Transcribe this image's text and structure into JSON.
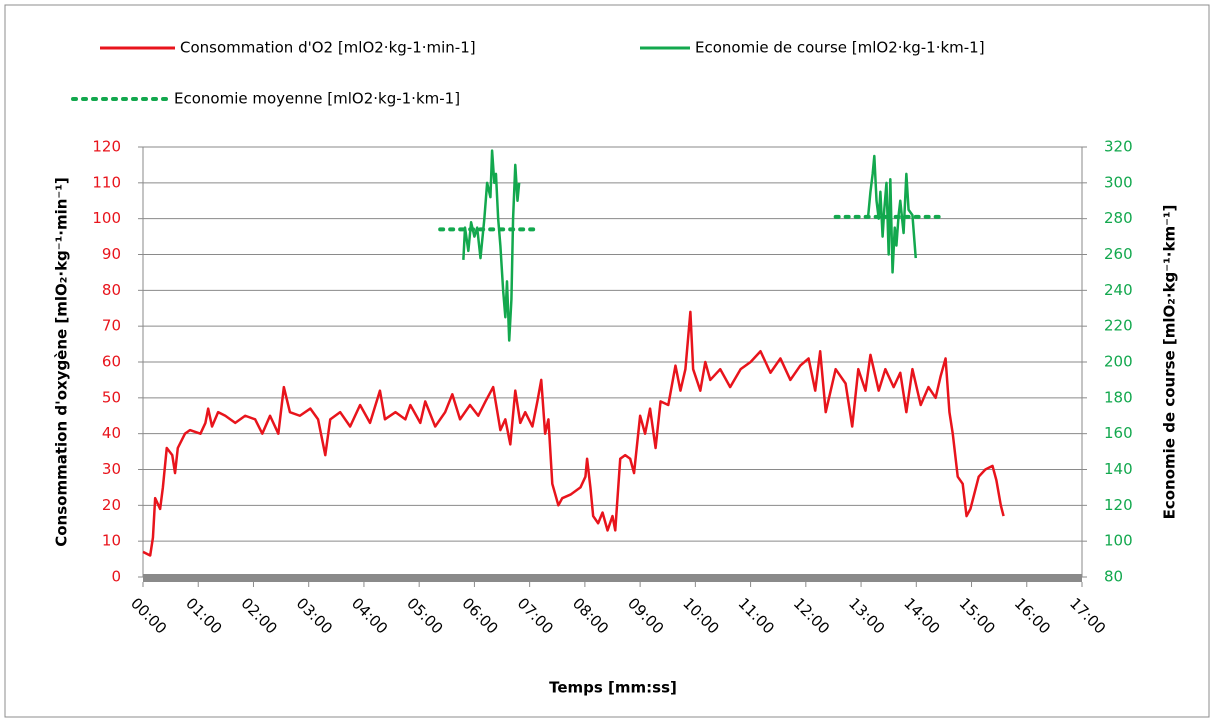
{
  "chart_data": {
    "type": "line",
    "xlabel": "Temps [mm:ss]",
    "ylabel": "Consommation d'oxygène [mlO₂·kg⁻¹·min⁻¹]",
    "y2label": "Economie de course [mlO₂·kg⁻¹·km⁻¹]",
    "legend": "top",
    "grid": true,
    "xlim": [
      0,
      17
    ],
    "xticks": [
      {
        "value": 0,
        "label": "00:00"
      },
      {
        "value": 1,
        "label": "01:00"
      },
      {
        "value": 2,
        "label": "02:00"
      },
      {
        "value": 3,
        "label": "03:00"
      },
      {
        "value": 4,
        "label": "04:00"
      },
      {
        "value": 5,
        "label": "05:00"
      },
      {
        "value": 6,
        "label": "06:00"
      },
      {
        "value": 7,
        "label": "07:00"
      },
      {
        "value": 8,
        "label": "08:00"
      },
      {
        "value": 9,
        "label": "09:00"
      },
      {
        "value": 10,
        "label": "10:00"
      },
      {
        "value": 11,
        "label": "11:00"
      },
      {
        "value": 12,
        "label": "12:00"
      },
      {
        "value": 13,
        "label": "13:00"
      },
      {
        "value": 14,
        "label": "14:00"
      },
      {
        "value": 15,
        "label": "15:00"
      },
      {
        "value": 16,
        "label": "16:00"
      },
      {
        "value": 17,
        "label": "17:00"
      }
    ],
    "ylim": [
      0,
      120
    ],
    "yticks": [
      0,
      10,
      20,
      30,
      40,
      50,
      60,
      70,
      80,
      90,
      100,
      110,
      120
    ],
    "y2lim": [
      80,
      320
    ],
    "y2ticks": [
      80,
      100,
      120,
      140,
      160,
      180,
      200,
      220,
      240,
      260,
      280,
      300,
      320
    ],
    "series": [
      {
        "name": "Consommation d'O2 [mlO2·kg-1·min-1]",
        "color": "#e8141c",
        "style": "solid",
        "x": [
          0,
          0.13,
          0.18,
          0.22,
          0.31,
          0.36,
          0.43,
          0.53,
          0.58,
          0.63,
          0.76,
          0.85,
          1.04,
          1.13,
          1.18,
          1.25,
          1.36,
          1.49,
          1.67,
          1.85,
          2.03,
          2.16,
          2.3,
          2.45,
          2.55,
          2.66,
          2.84,
          3.03,
          3.17,
          3.3,
          3.39,
          3.57,
          3.75,
          3.93,
          4.11,
          4.29,
          4.38,
          4.57,
          4.75,
          4.84,
          5.02,
          5.11,
          5.29,
          5.47,
          5.6,
          5.74,
          5.92,
          6.07,
          6.2,
          6.34,
          6.47,
          6.56,
          6.65,
          6.74,
          6.83,
          6.92,
          7.05,
          7.14,
          7.21,
          7.28,
          7.34,
          7.41,
          7.52,
          7.59,
          7.74,
          7.92,
          8.01,
          8.04,
          8.1,
          8.15,
          8.24,
          8.32,
          8.41,
          8.5,
          8.55,
          8.64,
          8.73,
          8.82,
          8.89,
          9.0,
          9.09,
          9.18,
          9.28,
          9.37,
          9.51,
          9.64,
          9.73,
          9.82,
          9.91,
          9.96,
          10.09,
          10.18,
          10.27,
          10.45,
          10.63,
          10.82,
          11.0,
          11.18,
          11.36,
          11.54,
          11.72,
          11.9,
          12.05,
          12.17,
          12.26,
          12.36,
          12.54,
          12.72,
          12.84,
          12.95,
          13.08,
          13.17,
          13.32,
          13.44,
          13.59,
          13.71,
          13.82,
          13.93,
          14.08,
          14.22,
          14.35,
          14.44,
          14.53,
          14.6,
          14.66,
          14.75,
          14.84,
          14.91,
          14.98,
          15.13,
          15.25,
          15.38,
          15.45,
          15.53,
          15.58
        ],
        "values": [
          7,
          6,
          11,
          22,
          19,
          25,
          36,
          34,
          29,
          36,
          40,
          41,
          40,
          43,
          47,
          42,
          46,
          45,
          43,
          45,
          44,
          40,
          45,
          40,
          53,
          46,
          45,
          47,
          44,
          34,
          44,
          46,
          42,
          48,
          43,
          52,
          44,
          46,
          44,
          48,
          43,
          49,
          42,
          46,
          51,
          44,
          48,
          45,
          49,
          53,
          41,
          44,
          37,
          52,
          43,
          46,
          42,
          49,
          55,
          40,
          44,
          26,
          20,
          22,
          23,
          25,
          28,
          33,
          25,
          17,
          15,
          18,
          13,
          17,
          13,
          33,
          34,
          33,
          29,
          45,
          40,
          47,
          36,
          49,
          48,
          59,
          52,
          58,
          74,
          58,
          52,
          60,
          55,
          58,
          53,
          58,
          60,
          63,
          57,
          61,
          55,
          59,
          61,
          52,
          63,
          46,
          58,
          54,
          42,
          58,
          52,
          62,
          52,
          58,
          53,
          57,
          46,
          58,
          48,
          53,
          50,
          56,
          61,
          46,
          40,
          28,
          26,
          17,
          19,
          28,
          30,
          31,
          27,
          20,
          17
        ]
      },
      {
        "name": "Economie de course [mlO2·kg-1·km-1]",
        "color": "#13a84e",
        "style": "solid",
        "axis": "y2",
        "x": [
          5.8,
          5.83,
          5.89,
          5.94,
          6.0,
          6.05,
          6.11,
          6.18,
          6.23,
          6.29,
          6.32,
          6.36,
          6.39,
          6.43,
          6.47,
          6.52,
          6.56,
          6.59,
          6.63,
          6.67,
          6.7,
          6.74,
          6.78,
          6.81,
          null,
          13.13,
          13.17,
          13.21,
          13.24,
          13.28,
          13.32,
          13.35,
          13.39,
          13.42,
          13.46,
          13.5,
          13.53,
          13.57,
          13.61,
          13.64,
          13.68,
          13.71,
          13.77,
          13.82,
          13.86,
          13.93,
          13.99
        ],
        "values": [
          257,
          275,
          262,
          278,
          270,
          275,
          258,
          280,
          300,
          292,
          318,
          300,
          305,
          280,
          265,
          240,
          225,
          245,
          212,
          235,
          280,
          310,
          290,
          300,
          null,
          282,
          295,
          305,
          315,
          290,
          280,
          295,
          270,
          285,
          300,
          260,
          302,
          250,
          275,
          265,
          282,
          290,
          272,
          305,
          285,
          282,
          258
        ]
      },
      {
        "name": "Economie moyenne [mlO2·kg-1·km-1]",
        "color": "#13a84e",
        "style": "dotted",
        "axis": "y2",
        "x": [
          5.38,
          7.1,
          null,
          12.54,
          14.44
        ],
        "values": [
          274,
          274,
          null,
          281,
          281
        ]
      }
    ]
  }
}
